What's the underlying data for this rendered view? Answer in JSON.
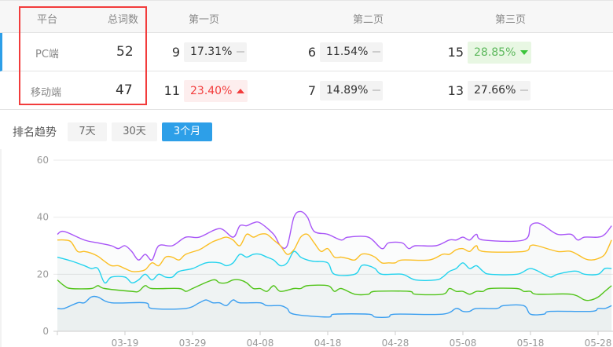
{
  "table": {
    "headers": [
      "平台",
      "总词数",
      "第一页",
      "第二页",
      "第三页"
    ],
    "rows": [
      {
        "platform": "PC端",
        "total": "52",
        "pages": [
          {
            "count": "9",
            "pct": "17.31%",
            "trend": "flat"
          },
          {
            "count": "6",
            "pct": "11.54%",
            "trend": "flat"
          },
          {
            "count": "15",
            "pct": "28.85%",
            "trend": "down"
          }
        ]
      },
      {
        "platform": "移动端",
        "total": "47",
        "pages": [
          {
            "count": "11",
            "pct": "23.40%",
            "trend": "up"
          },
          {
            "count": "7",
            "pct": "14.89%",
            "trend": "flat"
          },
          {
            "count": "13",
            "pct": "27.66%",
            "trend": "flat"
          }
        ]
      }
    ]
  },
  "trend": {
    "label": "排名趋势",
    "ranges": [
      "7天",
      "30天",
      "3个月"
    ],
    "active": "3个月"
  },
  "colors": {
    "accent": "#2d9fe8",
    "up": "#f23c3c",
    "down": "#3bc43b",
    "highlight_box": "#f23c3c"
  },
  "chart_data": {
    "type": "line",
    "ylim": [
      0,
      60
    ],
    "yticks": [
      "0",
      "20",
      "40",
      "60"
    ],
    "xticks": [
      "03-19",
      "03-29",
      "04-08",
      "04-18",
      "04-28",
      "05-08",
      "05-18",
      "05-28"
    ],
    "x_start": "03-09",
    "grid": true,
    "series": [
      {
        "color": "#a855f7",
        "points": [
          [
            "03-09",
            34
          ],
          [
            "03-10",
            35
          ],
          [
            "03-13",
            32
          ],
          [
            "03-15",
            31
          ],
          [
            "03-17",
            30
          ],
          [
            "03-18",
            29
          ],
          [
            "03-19",
            30
          ],
          [
            "03-20",
            28
          ],
          [
            "03-21",
            25
          ],
          [
            "03-22",
            27
          ],
          [
            "03-23",
            25
          ],
          [
            "03-24",
            30
          ],
          [
            "03-26",
            30
          ],
          [
            "03-28",
            33
          ],
          [
            "03-30",
            33
          ],
          [
            "04-02",
            36
          ],
          [
            "04-04",
            33
          ],
          [
            "04-05",
            37
          ],
          [
            "04-06",
            37
          ],
          [
            "04-07",
            38
          ],
          [
            "04-08",
            38
          ],
          [
            "04-10",
            34
          ],
          [
            "04-11",
            30
          ],
          [
            "04-12",
            30
          ],
          [
            "04-13",
            40
          ],
          [
            "04-14",
            42
          ],
          [
            "04-15",
            40
          ],
          [
            "04-16",
            35
          ],
          [
            "04-18",
            34
          ],
          [
            "04-20",
            32
          ],
          [
            "04-21",
            33
          ],
          [
            "04-24",
            33
          ],
          [
            "04-26",
            29
          ],
          [
            "04-27",
            31
          ],
          [
            "04-29",
            31
          ],
          [
            "04-30",
            29
          ],
          [
            "05-01",
            30
          ],
          [
            "05-04",
            30
          ],
          [
            "05-06",
            32
          ],
          [
            "05-07",
            32
          ],
          [
            "05-08",
            33
          ],
          [
            "05-09",
            32
          ],
          [
            "05-10",
            34
          ],
          [
            "05-11",
            32
          ],
          [
            "05-17",
            32
          ],
          [
            "05-18",
            37
          ],
          [
            "05-19",
            38
          ],
          [
            "05-20",
            37
          ],
          [
            "05-22",
            34
          ],
          [
            "05-24",
            34
          ],
          [
            "05-25",
            32
          ],
          [
            "05-26",
            33
          ],
          [
            "05-28",
            33
          ],
          [
            "05-29",
            34
          ],
          [
            "05-30",
            37
          ]
        ]
      },
      {
        "color": "#fbbf24",
        "points": [
          [
            "03-09",
            32
          ],
          [
            "03-10",
            32
          ],
          [
            "03-11",
            31.4
          ],
          [
            "03-12",
            28
          ],
          [
            "03-13",
            28
          ],
          [
            "03-14",
            27.4
          ],
          [
            "03-15",
            26.3
          ],
          [
            "03-16",
            24.5
          ],
          [
            "03-17",
            23
          ],
          [
            "03-18",
            23
          ],
          [
            "03-19",
            22
          ],
          [
            "03-20",
            21
          ],
          [
            "03-21",
            21
          ],
          [
            "03-22",
            21.6
          ],
          [
            "03-23",
            24
          ],
          [
            "03-24",
            23
          ],
          [
            "03-25",
            26
          ],
          [
            "03-26",
            26
          ],
          [
            "03-27",
            25
          ],
          [
            "03-28",
            27
          ],
          [
            "03-30",
            28.6
          ],
          [
            "03-31",
            30
          ],
          [
            "04-01",
            31.4
          ],
          [
            "04-02",
            32.3
          ],
          [
            "04-03",
            33
          ],
          [
            "04-04",
            32
          ],
          [
            "04-05",
            30
          ],
          [
            "04-06",
            34
          ],
          [
            "04-07",
            33
          ],
          [
            "04-08",
            34
          ],
          [
            "04-09",
            34
          ],
          [
            "04-10",
            32
          ],
          [
            "04-11",
            30
          ],
          [
            "04-12",
            27
          ],
          [
            "04-13",
            28.6
          ],
          [
            "04-14",
            33
          ],
          [
            "04-15",
            34
          ],
          [
            "04-16",
            31
          ],
          [
            "04-17",
            28
          ],
          [
            "04-18",
            29
          ],
          [
            "04-19",
            26
          ],
          [
            "04-20",
            26
          ],
          [
            "04-21",
            25.5
          ],
          [
            "04-22",
            25
          ],
          [
            "04-23",
            27
          ],
          [
            "04-24",
            27
          ],
          [
            "04-25",
            26
          ],
          [
            "04-26",
            24
          ],
          [
            "04-27",
            24
          ],
          [
            "04-28",
            24
          ],
          [
            "04-29",
            25
          ],
          [
            "05-03",
            25
          ],
          [
            "05-05",
            27
          ],
          [
            "05-06",
            27
          ],
          [
            "05-07",
            28.6
          ],
          [
            "05-08",
            29
          ],
          [
            "05-09",
            28
          ],
          [
            "05-10",
            30
          ],
          [
            "05-11",
            28
          ],
          [
            "05-17",
            28
          ],
          [
            "05-18",
            30
          ],
          [
            "05-19",
            30
          ],
          [
            "05-22",
            28
          ],
          [
            "05-24",
            28
          ],
          [
            "05-26",
            25.5
          ],
          [
            "05-27",
            25
          ],
          [
            "05-28",
            25.5
          ],
          [
            "05-29",
            27
          ],
          [
            "05-30",
            32
          ]
        ]
      },
      {
        "color": "#22d3ee",
        "points": [
          [
            "03-09",
            26
          ],
          [
            "03-11",
            24.7
          ],
          [
            "03-13",
            23
          ],
          [
            "03-14",
            22
          ],
          [
            "03-15",
            22
          ],
          [
            "03-16",
            17
          ],
          [
            "03-17",
            19
          ],
          [
            "03-19",
            19
          ],
          [
            "03-20",
            17
          ],
          [
            "03-21",
            18
          ],
          [
            "03-22",
            20
          ],
          [
            "03-23",
            18
          ],
          [
            "03-24",
            20
          ],
          [
            "03-25",
            19
          ],
          [
            "03-26",
            19
          ],
          [
            "03-27",
            21
          ],
          [
            "03-29",
            22
          ],
          [
            "03-31",
            24
          ],
          [
            "04-02",
            24
          ],
          [
            "04-03",
            23
          ],
          [
            "04-04",
            24
          ],
          [
            "04-05",
            27
          ],
          [
            "04-06",
            26
          ],
          [
            "04-07",
            27
          ],
          [
            "04-08",
            27
          ],
          [
            "04-09",
            26
          ],
          [
            "04-10",
            25
          ],
          [
            "04-11",
            23
          ],
          [
            "04-12",
            24
          ],
          [
            "04-13",
            28
          ],
          [
            "04-14",
            26
          ],
          [
            "04-15",
            25
          ],
          [
            "04-16",
            24.5
          ],
          [
            "04-18",
            24
          ],
          [
            "04-19",
            20
          ],
          [
            "04-22",
            20
          ],
          [
            "04-23",
            23
          ],
          [
            "04-24",
            23
          ],
          [
            "04-25",
            22
          ],
          [
            "04-26",
            20
          ],
          [
            "04-29",
            20
          ],
          [
            "05-01",
            18
          ],
          [
            "05-04",
            18
          ],
          [
            "05-05",
            19
          ],
          [
            "05-06",
            21
          ],
          [
            "05-07",
            22
          ],
          [
            "05-08",
            24
          ],
          [
            "05-09",
            22
          ],
          [
            "05-10",
            23
          ],
          [
            "05-11",
            21
          ],
          [
            "05-12",
            20
          ],
          [
            "05-16",
            20
          ],
          [
            "05-18",
            22
          ],
          [
            "05-20",
            20
          ],
          [
            "05-21",
            19
          ],
          [
            "05-22",
            20
          ],
          [
            "05-24",
            21
          ],
          [
            "05-25",
            21
          ],
          [
            "05-26",
            20
          ],
          [
            "05-28",
            20
          ],
          [
            "05-29",
            22
          ],
          [
            "05-30",
            22
          ]
        ]
      },
      {
        "color": "#52c41a",
        "points": [
          [
            "03-09",
            18
          ],
          [
            "03-10",
            16
          ],
          [
            "03-11",
            15
          ],
          [
            "03-14",
            15
          ],
          [
            "03-15",
            16
          ],
          [
            "03-16",
            15
          ],
          [
            "03-20",
            14
          ],
          [
            "03-21",
            14
          ],
          [
            "03-22",
            16
          ],
          [
            "03-23",
            15
          ],
          [
            "03-27",
            15
          ],
          [
            "03-28",
            14
          ],
          [
            "03-29",
            15
          ],
          [
            "04-01",
            18
          ],
          [
            "04-02",
            17
          ],
          [
            "04-03",
            17
          ],
          [
            "04-04",
            18
          ],
          [
            "04-05",
            18
          ],
          [
            "04-06",
            17
          ],
          [
            "04-07",
            15
          ],
          [
            "04-08",
            15
          ],
          [
            "04-09",
            14
          ],
          [
            "04-10",
            16
          ],
          [
            "04-11",
            14
          ],
          [
            "04-13",
            15
          ],
          [
            "04-14",
            15
          ],
          [
            "04-15",
            16
          ],
          [
            "04-18",
            16
          ],
          [
            "04-19",
            14
          ],
          [
            "04-20",
            15
          ],
          [
            "04-22",
            13
          ],
          [
            "04-24",
            13
          ],
          [
            "04-25",
            14
          ],
          [
            "04-30",
            14
          ],
          [
            "05-01",
            13
          ],
          [
            "05-05",
            13
          ],
          [
            "05-06",
            15
          ],
          [
            "05-07",
            14
          ],
          [
            "05-08",
            14
          ],
          [
            "05-09",
            13
          ],
          [
            "05-10",
            14
          ],
          [
            "05-11",
            14
          ],
          [
            "05-12",
            15
          ],
          [
            "05-16",
            15
          ],
          [
            "05-17",
            14
          ],
          [
            "05-18",
            14
          ],
          [
            "05-19",
            13
          ],
          [
            "05-24",
            13
          ],
          [
            "05-26",
            11
          ],
          [
            "05-27",
            11
          ],
          [
            "05-28",
            12
          ],
          [
            "05-29",
            14
          ],
          [
            "05-30",
            16
          ]
        ]
      },
      {
        "color": "#3b9ff0",
        "points": [
          [
            "03-09",
            8
          ],
          [
            "03-10",
            8
          ],
          [
            "03-12",
            10
          ],
          [
            "03-13",
            10
          ],
          [
            "03-14",
            12
          ],
          [
            "03-15",
            12
          ],
          [
            "03-17",
            10
          ],
          [
            "03-22",
            10
          ],
          [
            "03-23",
            8
          ],
          [
            "03-28",
            8
          ],
          [
            "03-30",
            10
          ],
          [
            "03-31",
            11
          ],
          [
            "04-01",
            10
          ],
          [
            "04-02",
            10
          ],
          [
            "04-03",
            9
          ],
          [
            "04-04",
            11
          ],
          [
            "04-05",
            10
          ],
          [
            "04-08",
            10
          ],
          [
            "04-09",
            9
          ],
          [
            "04-11",
            9
          ],
          [
            "04-12",
            8
          ],
          [
            "04-13",
            6
          ],
          [
            "04-18",
            5
          ],
          [
            "04-19",
            6
          ],
          [
            "04-24",
            6
          ],
          [
            "04-25",
            5
          ],
          [
            "04-27",
            5
          ],
          [
            "04-28",
            6
          ],
          [
            "05-05",
            6
          ],
          [
            "05-07",
            8
          ],
          [
            "05-08",
            7
          ],
          [
            "05-09",
            7
          ],
          [
            "05-10",
            8
          ],
          [
            "05-13",
            8
          ],
          [
            "05-14",
            9
          ],
          [
            "05-17",
            9
          ],
          [
            "05-18",
            6
          ],
          [
            "05-20",
            6
          ],
          [
            "05-21",
            7
          ],
          [
            "05-27",
            7
          ],
          [
            "05-28",
            8
          ],
          [
            "05-29",
            8
          ],
          [
            "05-30",
            9
          ]
        ]
      }
    ]
  }
}
